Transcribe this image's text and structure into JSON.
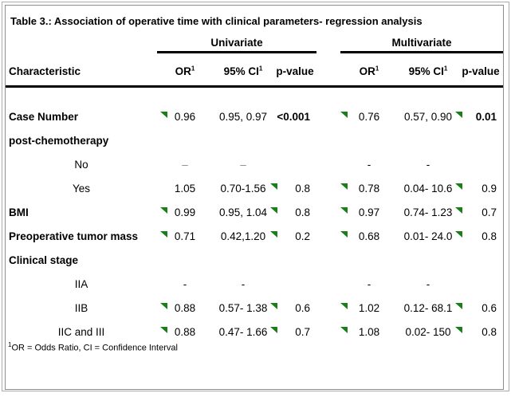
{
  "title": "Table 3.: Association of operative time with clinical parameters- regression analysis",
  "header": {
    "characteristic": "Characteristic",
    "group_univariate": "Univariate",
    "group_multivariate": "Multivariate",
    "or_label": "OR",
    "ci_label": "95% CI",
    "p_label": "p-value",
    "sup": "1"
  },
  "colors": {
    "marker_green": "#1b7e1b",
    "muted_dash": "#8a8a8a",
    "rule_black": "#000000",
    "border_gray": "#8c8c8c"
  },
  "rows": [
    {
      "label": "Case Number",
      "uni": {
        "or": "0.96",
        "ci": "0.95, 0.97",
        "p": "<0.001"
      },
      "multi": {
        "or": "0.76",
        "ci": "0.57, 0.90",
        "p": "0.01"
      }
    },
    {
      "label": "post-chemotherapy"
    },
    {
      "label": "No",
      "uni": {
        "or": "–",
        "ci": "–",
        "p": ""
      },
      "multi": {
        "or": "-",
        "ci": "-",
        "p": ""
      }
    },
    {
      "label": "Yes",
      "uni": {
        "or": "1.05",
        "ci": "0.70-1.56",
        "p": "0.8"
      },
      "multi": {
        "or": "0.78",
        "ci": "0.04- 10.6",
        "p": "0.9"
      }
    },
    {
      "label": "BMI",
      "uni": {
        "or": "0.99",
        "ci": "0.95, 1.04",
        "p": "0.8"
      },
      "multi": {
        "or": "0.97",
        "ci": "0.74- 1.23",
        "p": "0.7"
      }
    },
    {
      "label": "Preoperative tumor mass",
      "uni": {
        "or": "0.71",
        "ci": "0.42,1.20",
        "p": "0.2"
      },
      "multi": {
        "or": "0.68",
        "ci": "0.01- 24.0",
        "p": "0.8"
      }
    },
    {
      "label": "Clinical stage"
    },
    {
      "label": "IIA",
      "uni": {
        "or": "-",
        "ci": "-",
        "p": ""
      },
      "multi": {
        "or": "-",
        "ci": "-",
        "p": ""
      }
    },
    {
      "label": "IIB",
      "uni": {
        "or": "0.88",
        "ci": "0.57- 1.38",
        "p": "0.6"
      },
      "multi": {
        "or": "1.02",
        "ci": "0.12- 68.1",
        "p": "0.6"
      }
    },
    {
      "label": "IIC and III",
      "uni": {
        "or": "0.88",
        "ci": "0.47- 1.66",
        "p": "0.7"
      },
      "multi": {
        "or": "1.08",
        "ci": "0.02- 150",
        "p": "0.8"
      }
    }
  ],
  "footnote": {
    "sup": "1",
    "text": "OR = Odds Ratio, CI = Confidence Interval"
  }
}
